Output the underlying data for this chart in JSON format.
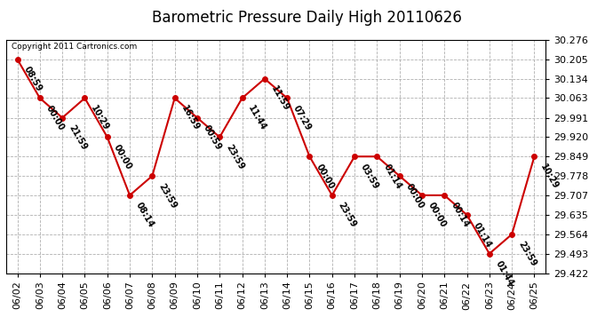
{
  "title": "Barometric Pressure Daily High 20110626",
  "copyright": "Copyright 2011 Cartronics.com",
  "x_labels": [
    "06/02",
    "06/03",
    "06/04",
    "06/05",
    "06/06",
    "06/07",
    "06/08",
    "06/09",
    "06/10",
    "06/11",
    "06/12",
    "06/13",
    "06/14",
    "06/15",
    "06/16",
    "06/17",
    "06/18",
    "06/19",
    "06/20",
    "06/21",
    "06/22",
    "06/23",
    "06/24",
    "06/25"
  ],
  "y_values": [
    30.205,
    30.063,
    29.991,
    30.063,
    29.92,
    29.707,
    29.778,
    30.063,
    29.991,
    29.92,
    30.063,
    30.134,
    30.063,
    29.849,
    29.707,
    29.849,
    29.849,
    29.778,
    29.707,
    29.707,
    29.635,
    29.493,
    29.564,
    29.849
  ],
  "time_labels": [
    "08:59",
    "00:00",
    "21:59",
    "10:29",
    "00:00",
    "08:14",
    "23:59",
    "16:59",
    "00:59",
    "23:59",
    "11:44",
    "11:59",
    "07:29",
    "00:00",
    "23:59",
    "03:59",
    "01:14",
    "00:00",
    "00:00",
    "00:14",
    "01:14",
    "01:44",
    "23:59",
    "10:29"
  ],
  "y_min": 29.422,
  "y_max": 30.276,
  "y_ticks": [
    29.422,
    29.493,
    29.564,
    29.635,
    29.707,
    29.778,
    29.849,
    29.92,
    29.991,
    30.063,
    30.134,
    30.205,
    30.276
  ],
  "line_color": "#cc0000",
  "marker_color": "#cc0000",
  "bg_color": "#ffffff",
  "grid_color": "#b0b0b0",
  "title_fontsize": 12,
  "label_fontsize": 7,
  "tick_fontsize": 8
}
